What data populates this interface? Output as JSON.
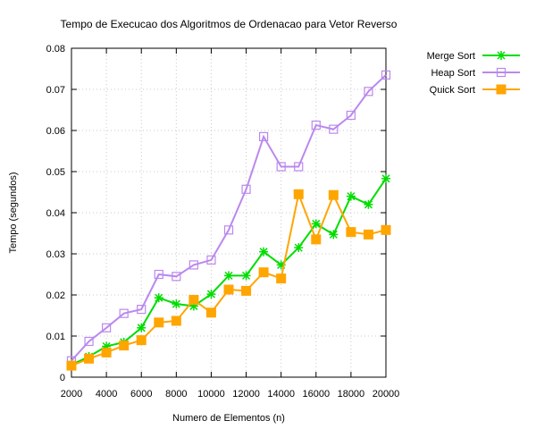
{
  "chart_data": {
    "type": "line",
    "title": "Tempo de Execucao dos Algoritmos de Ordenacao para Vetor Reverso",
    "xlabel": "Numero de Elementos (n)",
    "ylabel": "Tempo (segundos)",
    "xlim": [
      2000,
      20000
    ],
    "ylim": [
      0,
      0.08
    ],
    "grid": true,
    "legend_position": "top-right (outside plot)",
    "xticks": [
      "2000",
      "4000",
      "6000",
      "8000",
      "10000",
      "12000",
      "14000",
      "16000",
      "18000",
      "20000"
    ],
    "yticks": [
      "0",
      "0.01",
      "0.02",
      "0.03",
      "0.04",
      "0.05",
      "0.06",
      "0.07",
      "0.08"
    ],
    "x": [
      2000,
      3000,
      4000,
      5000,
      6000,
      7000,
      8000,
      9000,
      10000,
      11000,
      12000,
      13000,
      14000,
      15000,
      16000,
      17000,
      18000,
      19000,
      20000
    ],
    "series": [
      {
        "name": "Merge Sort",
        "color": "#00dd00",
        "marker": "star",
        "values": [
          0.003,
          0.005,
          0.0075,
          0.0085,
          0.012,
          0.0193,
          0.0178,
          0.0173,
          0.0202,
          0.0247,
          0.0247,
          0.0305,
          0.0273,
          0.0315,
          0.0373,
          0.0347,
          0.044,
          0.042,
          0.0483
        ]
      },
      {
        "name": "Heap Sort",
        "color": "#bb88ee",
        "marker": "open-square",
        "values": [
          0.004,
          0.0087,
          0.012,
          0.0155,
          0.0165,
          0.025,
          0.0245,
          0.0273,
          0.0285,
          0.0358,
          0.0457,
          0.0585,
          0.0512,
          0.0512,
          0.0613,
          0.0603,
          0.0637,
          0.0695,
          0.0735
        ]
      },
      {
        "name": "Quick Sort",
        "color": "#ffa500",
        "marker": "filled-square",
        "values": [
          0.0028,
          0.0045,
          0.006,
          0.0077,
          0.009,
          0.0133,
          0.0137,
          0.0188,
          0.0157,
          0.0213,
          0.021,
          0.0255,
          0.024,
          0.0445,
          0.0335,
          0.0443,
          0.0353,
          0.0347,
          0.0358
        ]
      }
    ]
  }
}
